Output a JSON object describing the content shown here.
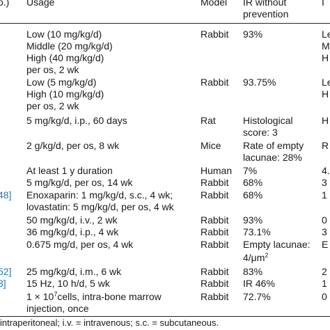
{
  "header": {
    "ref_col": "o.)",
    "usage": "Usage",
    "model": "Model",
    "ir_line1": "IR without",
    "ir_line2": "prevention",
    "last_col": "I"
  },
  "rows": [
    {
      "usage": [
        "Low (10 mg/kg/d)",
        "Middle (20 mg/kg/d)",
        "High (40 mg/kg/d)",
        "per os, 2 wk"
      ],
      "model": "Rabbit",
      "ir": [
        "93%"
      ],
      "last": [
        "Le",
        "M",
        "H"
      ]
    },
    {
      "usage": [
        "Low (5 mg/kg/d)",
        "High (10 mg/kg/d)",
        "per os, 2 wk"
      ],
      "model": "Rabbit",
      "ir": [
        "93.75%"
      ],
      "last": [
        "Le",
        "H"
      ]
    },
    {
      "usage": [
        "5 mg/kg/d, i.p., 60 days"
      ],
      "model": "Rat",
      "ir": [
        "Histological",
        "score: 3"
      ],
      "last": [
        "H"
      ]
    },
    {
      "usage": [
        "2 g/kg/d, per os, 8 wk"
      ],
      "model": "Mice",
      "ir": [
        "Rate of empty",
        "lacunae: 28%"
      ],
      "last": [
        "R"
      ]
    },
    {
      "usage": [
        "At least 1 y duration"
      ],
      "model": "Human",
      "ir": [
        "7%"
      ],
      "last": [
        "4."
      ]
    },
    {
      "usage": [
        "5 mg/kg/d, per os, 14 wk"
      ],
      "model": "Rabbit",
      "ir": [
        "68%"
      ],
      "last": [
        "3"
      ]
    },
    {
      "ref": "48]",
      "usage": [
        "Enoxaparin: 1 mg/kg/d, s.c., 4 wk;",
        "lovastatin: 5 mg/kg/d, per os, 4 wk"
      ],
      "model": "Rabbit",
      "ir": [
        "68%"
      ],
      "last": [
        "1"
      ]
    },
    {
      "usage": [
        "50 mg/kg/d, i.v., 2 wk"
      ],
      "model": "Rabbit",
      "ir": [
        "93%"
      ],
      "last": [
        "0"
      ]
    },
    {
      "usage": [
        "36 mg/kg/d, i.p., 4 wk"
      ],
      "model": "Rabbit",
      "ir": [
        "73.1%"
      ],
      "last": [
        "3"
      ]
    },
    {
      "usage": [
        "0.675 mg/d, per os, 4 wk"
      ],
      "model": "Rabbit",
      "ir_sup": {
        "text": "Empty lacunae:",
        "line2": "4/μm",
        "exp": "2"
      },
      "last": [
        "E"
      ]
    },
    {
      "ref": "52]",
      "usage": [
        "25 mg/kg/d, i.m., 6 wk"
      ],
      "model": "Rabbit",
      "ir": [
        "83%"
      ],
      "last": [
        "2"
      ]
    },
    {
      "ref": "3]",
      "usage": [
        "15 Hz, 10 h/d, 5 wk"
      ],
      "model": "Rabbit",
      "ir": [
        "IR 46%"
      ],
      "last": [
        "1"
      ]
    },
    {
      "usage_sup": {
        "pre": "1 × 10",
        "exp": "7",
        "post": "cells, intra-bone marrow",
        "line2": "injection, once"
      },
      "model": "Rabbit",
      "ir": [
        "72.7%"
      ],
      "last": [
        "0"
      ]
    }
  ],
  "footnote": "intraperitoneal; i.v. = intravenous; s.c. = subcutaneous."
}
